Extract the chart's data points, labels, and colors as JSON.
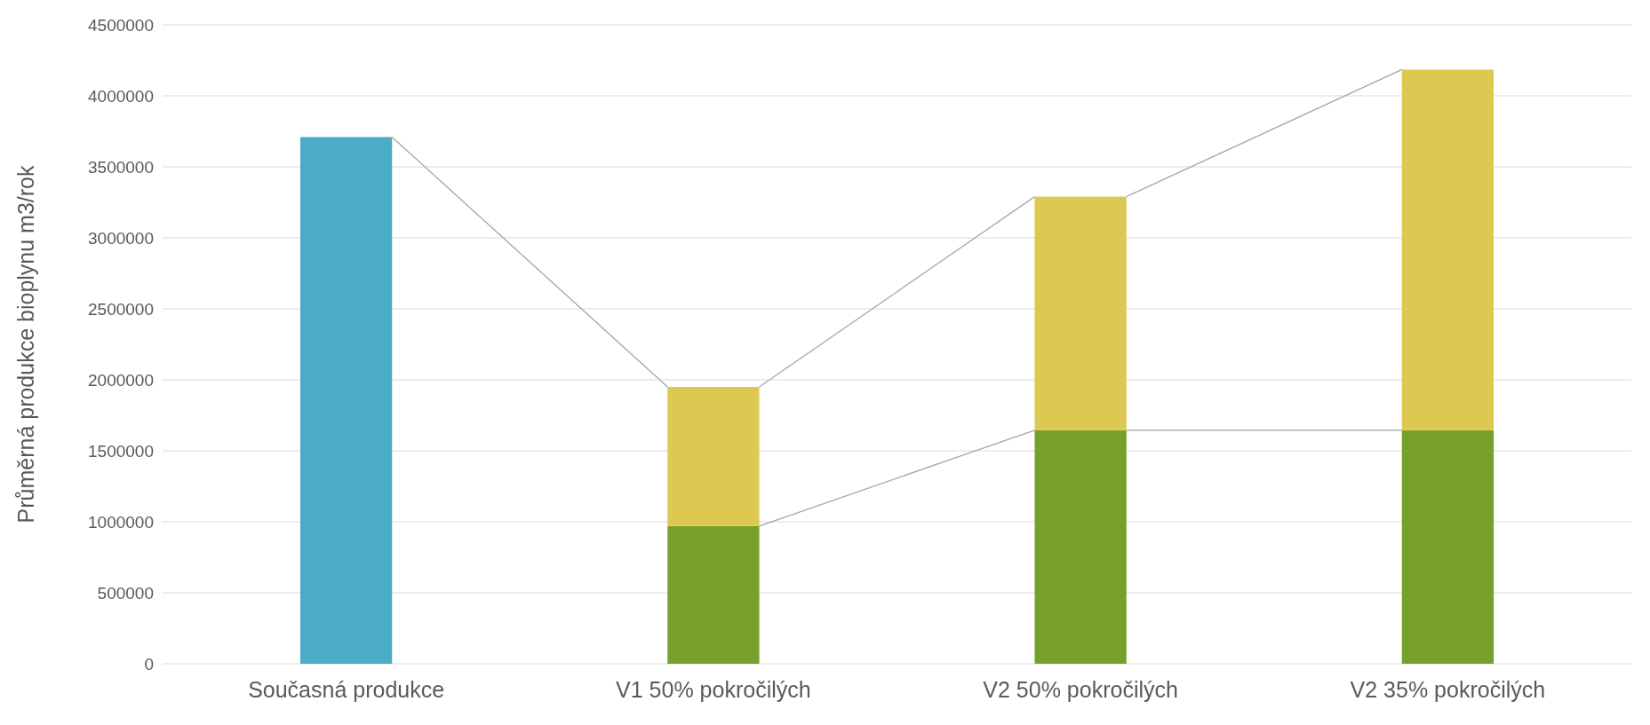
{
  "chart_data": {
    "type": "bar",
    "stacked": true,
    "ylabel": "Průměrná produkce bioplynu  m3/rok",
    "categories": [
      "Současná produkce",
      "V1 50% pokročilých",
      "V2 50% pokročilých",
      "V2 35% pokročilých"
    ],
    "series": [
      {
        "color": "#4bacc6",
        "values": [
          3710000,
          null,
          null,
          null
        ]
      },
      {
        "color": "#77a02a",
        "values": [
          null,
          970000,
          1645000,
          1645000
        ]
      },
      {
        "color": "#ddc952",
        "values": [
          null,
          980000,
          1645000,
          2540000
        ]
      }
    ],
    "ylim": [
      0,
      4500000
    ],
    "yticks": [
      0,
      500000,
      1000000,
      1500000,
      2000000,
      2500000,
      3000000,
      3500000,
      4000000,
      4500000
    ],
    "grid": "y"
  }
}
